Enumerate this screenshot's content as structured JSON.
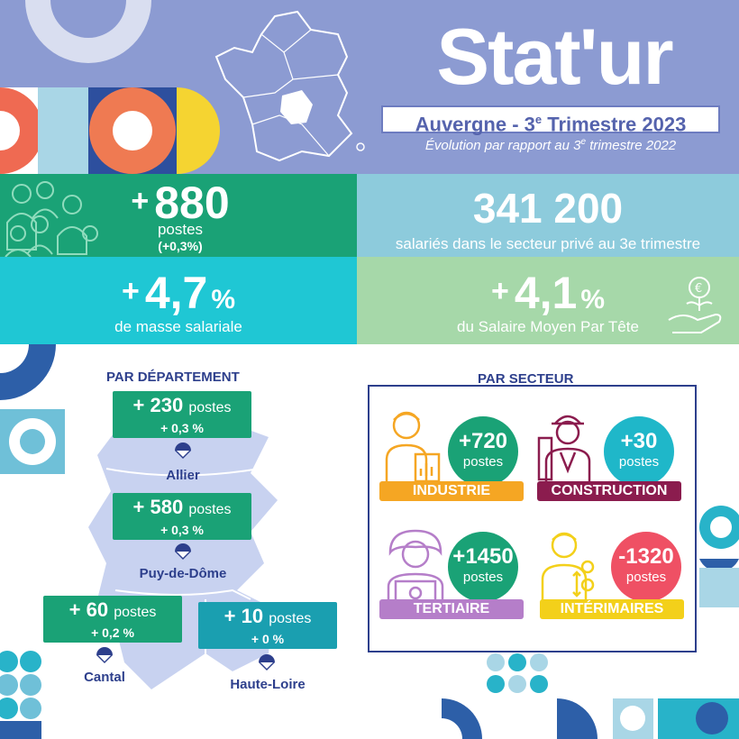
{
  "header": {
    "title": "Stat'ur",
    "subtitle_main": "Auvergne - 3",
    "subtitle_sup": "e",
    "subtitle_rest": " Trimestre 2023",
    "evolution_pre": "Évolution par rapport au 3",
    "evolution_sup": "e",
    "evolution_rest": " trimestre 2022"
  },
  "kpis": {
    "postes": {
      "sign": "+",
      "value": "880",
      "label": "postes",
      "pct": "(+0,3%)"
    },
    "salaries": {
      "value": "341 200",
      "label": "salariés dans le secteur privé au 3e trimestre"
    },
    "masse": {
      "sign": "+",
      "value": "4,7",
      "pct": "%",
      "label": "de masse salariale"
    },
    "smpt": {
      "sign": "+",
      "value": "4,1",
      "pct": "%",
      "label": "du Salaire Moyen Par Tête"
    }
  },
  "departements": {
    "title": "PAR DÉPARTEMENT",
    "items": [
      {
        "name": "Allier",
        "value": "+ 230",
        "unit": "postes",
        "pct": "+ 0,3 %"
      },
      {
        "name": "Puy-de-Dôme",
        "value": "+ 580",
        "unit": "postes",
        "pct": "+ 0,3 %"
      },
      {
        "name": "Cantal",
        "value": "+ 60",
        "unit": "postes",
        "pct": "+ 0,2 %"
      },
      {
        "name": "Haute-Loire",
        "value": "+ 10",
        "unit": "postes",
        "pct": "+ 0 %"
      }
    ]
  },
  "secteurs": {
    "title": "PAR SECTEUR",
    "items": [
      {
        "name": "INDUSTRIE",
        "value": "+720",
        "unit": "postes",
        "circle_color": "#1aa276",
        "band_color": "#f5a623"
      },
      {
        "name": "CONSTRUCTION",
        "value": "+30",
        "unit": "postes",
        "circle_color": "#1fb7c9",
        "band_color": "#8b1c4e"
      },
      {
        "name": "TERTIAIRE",
        "value": "+1450",
        "unit": "postes",
        "circle_color": "#1aa276",
        "band_color": "#b57ec9"
      },
      {
        "name": "INTÉRIMAIRES",
        "value": "-1320",
        "unit": "postes",
        "circle_color": "#ef5064",
        "band_color": "#f3d01a"
      }
    ]
  },
  "colors": {
    "header_bg": "#8c9bd2",
    "green": "#1aa276",
    "light_blue": "#8dcbdc",
    "cyan": "#1fc7d4",
    "light_green": "#a6d8a9",
    "navy": "#2d3f8c"
  }
}
